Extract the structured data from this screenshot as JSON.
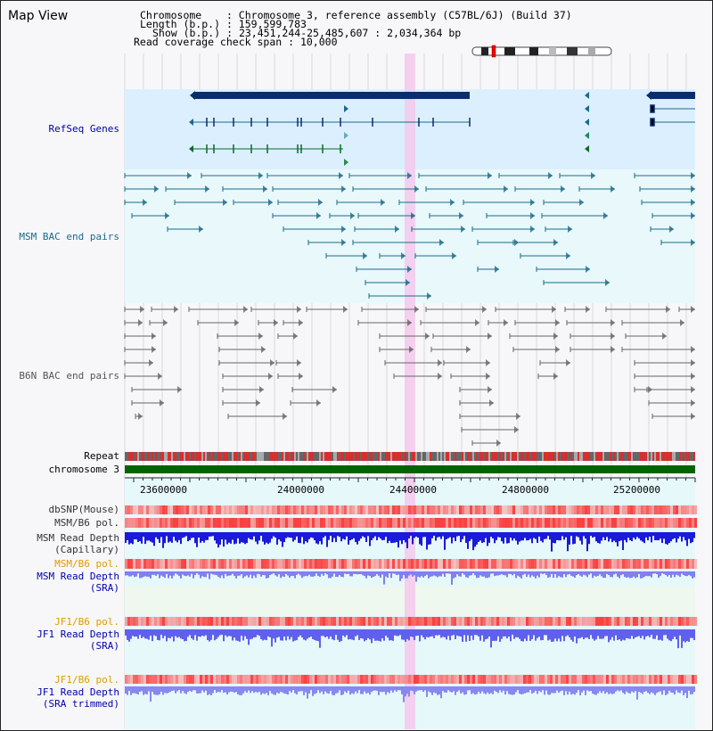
{
  "title": "Map View",
  "header": {
    "chromosome_label": "Chromosome",
    "chromosome_value": "Chromosome 3, reference assembly (C57BL/6J) (Build 37)",
    "length_label": "Length (b.p.)",
    "length_value": "159,599,783",
    "show_label": "Show (b.p.)",
    "show_value": "23,451,244-25,485,607 : 2,034,364 bp",
    "coverage_label": "Read coverage check span",
    "coverage_value": "10,000"
  },
  "tracks": {
    "refseq": "RefSeq Genes",
    "msm_bac": "MSM BAC end pairs",
    "b6n_bac": "B6N BAC end pairs",
    "repeat": "Repeat",
    "chromosome": "chromosome 3",
    "dbsnp": "dbSNP(Mouse)",
    "msm_b6_pol": "MSM/B6 pol.",
    "msm_depth_1": "MSM Read Depth",
    "msm_depth_2": "(Capillary)",
    "msm_b6_pol_sra": "MSM/B6 pol.",
    "msm_depth_sra_1": "MSM Read Depth",
    "msm_depth_sra_2": "(SRA)",
    "jf1_b6_pol": "JF1/B6 pol.",
    "jf1_depth_1": "JF1 Read Depth",
    "jf1_depth_2": "(SRA)",
    "jf1_b6_pol_t": "JF1/B6 pol.",
    "jf1_depth_t_1": "JF1 Read Depth",
    "jf1_depth_t_2": "(SRA trimmed)"
  },
  "ruler": {
    "ticks": [
      "23600000",
      "24000000",
      "24400000",
      "24800000",
      "25200000"
    ]
  },
  "colors": {
    "refseq_bg": "#dcefff",
    "msm_bg": "#e8f8fb",
    "b6n_bg": "#f4f4f8",
    "highlight": "#f5c9ec",
    "gene_dark": "#0a2d6e",
    "msm_pair": "#1a6b8a",
    "b6n_pair": "#555555",
    "chromosome_green": "#006400",
    "label_blue": "#0000aa",
    "label_orange": "#e39a00",
    "label_teal": "#1a6b8a"
  }
}
